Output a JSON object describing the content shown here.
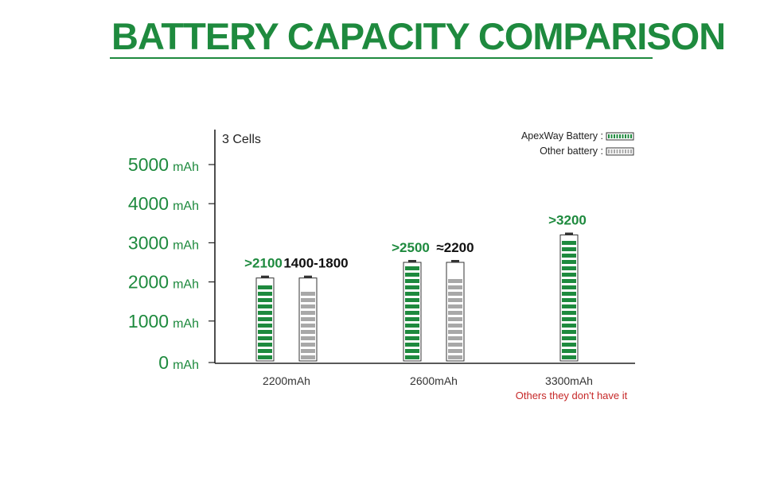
{
  "title": "BATTERY CAPACITY COMPARISON",
  "chart_data": {
    "type": "bar",
    "subtitle": "3 Cells",
    "categories": [
      "2200mAh",
      "2600mAh",
      "3300mAh"
    ],
    "series": [
      {
        "name": "ApexWay Battery",
        "values": [
          2100,
          2500,
          3200
        ],
        "labels": [
          ">2100",
          ">2500",
          ">3200"
        ],
        "color": "#1e8a3e"
      },
      {
        "name": "Other battery",
        "values": [
          1800,
          2200,
          null
        ],
        "labels": [
          "1400-1800",
          "≈2200",
          ""
        ],
        "color": "#a8a8a8"
      }
    ],
    "y_ticks": [
      {
        "value": 5000,
        "number": "5000",
        "unit": "mAh"
      },
      {
        "value": 4000,
        "number": "4000",
        "unit": "mAh"
      },
      {
        "value": 3000,
        "number": "3000",
        "unit": "mAh"
      },
      {
        "value": 2000,
        "number": "2000",
        "unit": "mAh"
      },
      {
        "value": 1000,
        "number": "1000",
        "unit": "mAh"
      },
      {
        "value": 0,
        "number": "0",
        "unit": "mAh"
      }
    ],
    "ylim": [
      0,
      6000
    ],
    "annotations": [
      {
        "category": "3300mAh",
        "text": "Others they don't have it",
        "color": "#c62828"
      }
    ],
    "legend_position": "top-right",
    "grid": false,
    "colors": {
      "accent": "#1e8a3e",
      "other": "#a8a8a8",
      "annotation": "#c62828"
    }
  }
}
